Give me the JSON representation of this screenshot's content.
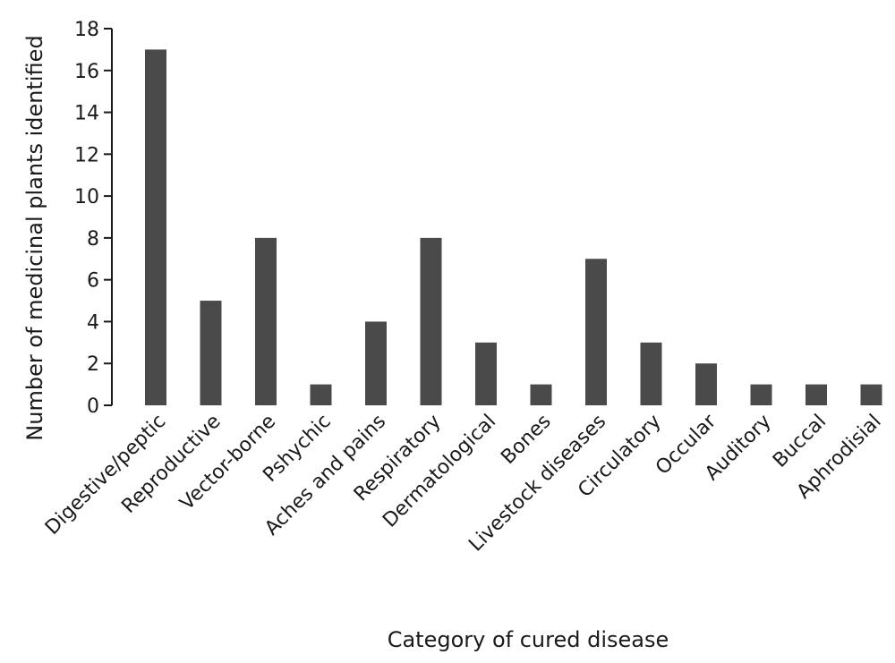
{
  "chart_data": {
    "type": "bar",
    "title": "",
    "xlabel": "Category of cured disease",
    "ylabel": "Number of medicinal plants identified",
    "ylim": [
      0,
      18
    ],
    "yticks": [
      0,
      2,
      4,
      6,
      8,
      10,
      12,
      14,
      16,
      18
    ],
    "grid": false,
    "bar_color": "#4a4a4a",
    "categories": [
      "Digestive/peptic",
      "Reproductive",
      "Vector-borne",
      "Pshychic",
      "Aches and pains",
      "Respiratory",
      "Dermatological",
      "Bones",
      "Livestock diseases",
      "Circulatory",
      "Occular",
      "Auditory",
      "Buccal",
      "Aphrodisial"
    ],
    "values": [
      17,
      5,
      8,
      1,
      4,
      8,
      3,
      1,
      7,
      3,
      2,
      1,
      1,
      1
    ]
  }
}
